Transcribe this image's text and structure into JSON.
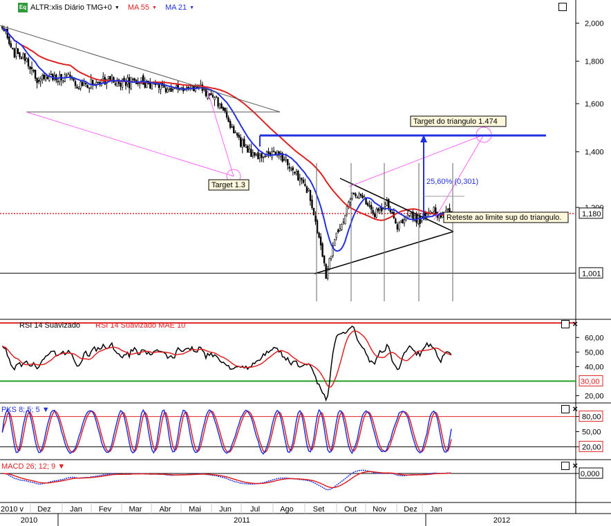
{
  "header": {
    "badge": "Eq",
    "symbol": "ALTR:xlis Diário TMG+0",
    "ma55": "MA 55",
    "ma21": "MA 21",
    "arrow": "▼"
  },
  "colors": {
    "price_up": "#000000",
    "price_down": "#000000",
    "ma55": "#e02020",
    "ma21": "#2030e0",
    "rsi": "#000000",
    "rsi_ma": "#e02020",
    "pks_k": "#2030e0",
    "pks_d": "#e02020",
    "macd": "#2030e0",
    "macd_signal": "#e02020",
    "overbought": "#e02020",
    "oversold": "#20a020",
    "current_price": "#e02020",
    "fib_lines": "#ff66ff",
    "target_arrow": "#2030e0"
  },
  "chart_data": [
    {
      "type": "candlestick",
      "panel": "price",
      "title": "ALTR:xlis Diário TMG+0",
      "series": [
        {
          "name": "MA 55",
          "role": "moving-average"
        },
        {
          "name": "MA 21",
          "role": "moving-average"
        }
      ],
      "x_months": [
        "Dez",
        "Jan",
        "Fev",
        "Mar",
        "Abr",
        "Mai",
        "Jun",
        "Jul",
        "Ago",
        "Set",
        "Out",
        "Nov",
        "Dez",
        "Jan"
      ],
      "years": [
        "2010",
        "2011",
        "2012"
      ],
      "first_tick": "2010 v",
      "ytick_labels": [
        "2,000",
        "1,800",
        "1,600",
        "1,400",
        "1,200"
      ],
      "ylim": [
        0.88,
        2.1
      ],
      "y_scale": "log",
      "current_price": "1,180",
      "low_marker": "1,001",
      "annotations": [
        {
          "text": "Target 1.3"
        },
        {
          "text": "Target do triangulo  1.474"
        },
        {
          "text": "25,60% (0,301)"
        },
        {
          "text": "Reteste ao limite sup do triangulo."
        }
      ],
      "grid": false
    },
    {
      "type": "line",
      "panel": "rsi",
      "series": [
        {
          "name": "RSI 14 Suavizado"
        },
        {
          "name": "RSI 14 Suavizado MAE 10"
        }
      ],
      "ytick_labels": [
        "60,00",
        "50,00",
        "40,00",
        "20,00"
      ],
      "levels": [
        "70",
        "30,00"
      ],
      "ylim": [
        15,
        72
      ]
    },
    {
      "type": "line",
      "panel": "stochastic",
      "series": [
        {
          "name": "PKS 8; 5; 5"
        }
      ],
      "ytick_labels": [
        "80,00",
        "50,00",
        "20,00"
      ],
      "levels": [
        "80,00",
        "20,00"
      ],
      "ylim": [
        0,
        100
      ]
    },
    {
      "type": "line",
      "panel": "macd",
      "series": [
        {
          "name": "MACD 26; 12; 9"
        }
      ],
      "ytick_labels": [
        "0,000"
      ],
      "zero_line": true
    }
  ]
}
